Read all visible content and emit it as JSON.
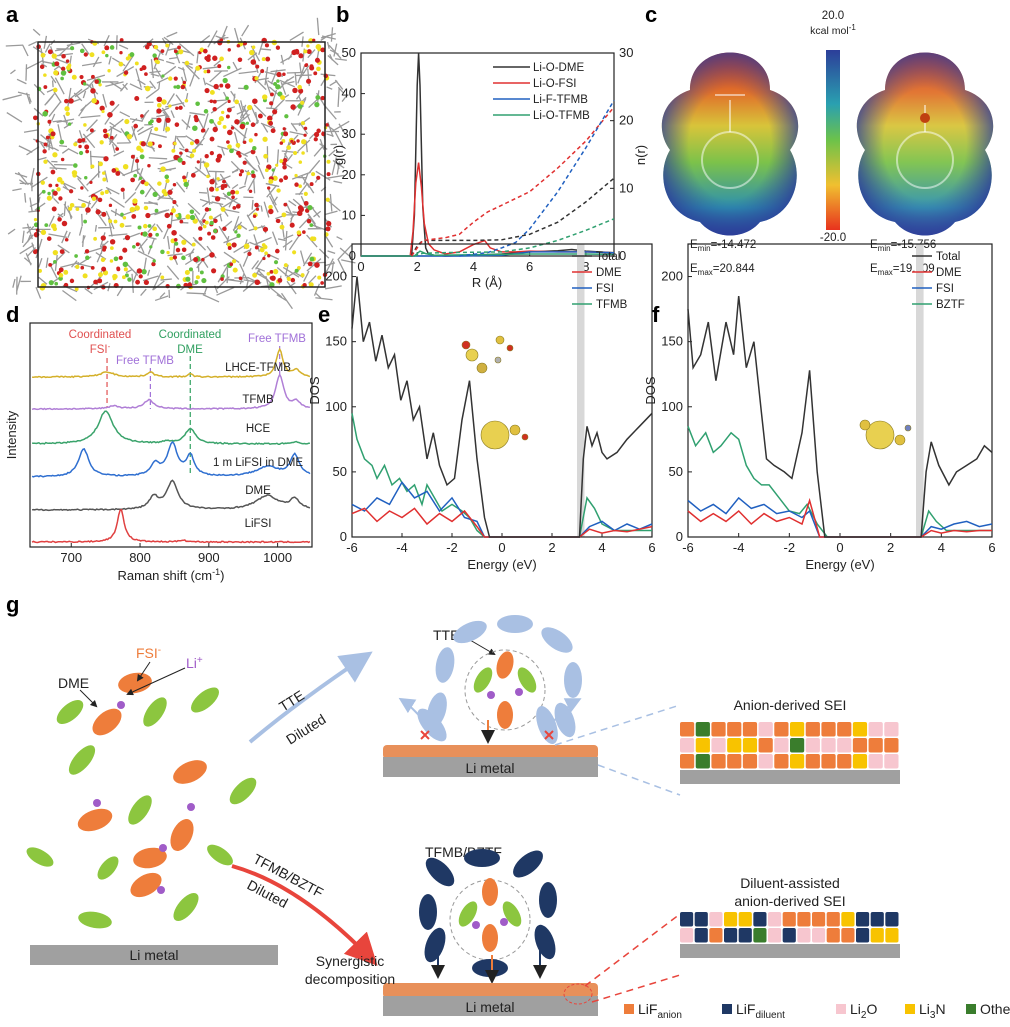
{
  "panel_labels": {
    "a": "a",
    "b": "b",
    "c": "c",
    "d": "d",
    "e": "e",
    "f": "f",
    "g": "g"
  },
  "panel_c": {
    "colorbar_max": "20.0",
    "colorbar_unit": "kcal mol",
    "colorbar_unit_sup": "-1",
    "colorbar_min": "-20.0",
    "left": {
      "emin": {
        "e": "E",
        "sub": "min",
        "val": "=-14.472"
      },
      "emax": {
        "e": "E",
        "sub": "max",
        "val": "=20.844"
      }
    },
    "right": {
      "emin": {
        "e": "E",
        "sub": "min",
        "val": "=-15.756"
      },
      "emax": {
        "e": "E",
        "sub": "max",
        "val": "=19.909"
      }
    },
    "colors": {
      "neg": "#e8321e",
      "mid": "#6cc24a",
      "pos": "#2c3e99"
    }
  },
  "chart_data": [
    {
      "id": "b",
      "type": "line",
      "xlabel": "R (Å)",
      "ylabel": "g(r)",
      "y2label": "n(r)",
      "xlim": [
        0,
        9
      ],
      "ylim": [
        0,
        50
      ],
      "y2lim": [
        0,
        30
      ],
      "xticks": [
        "0",
        "2",
        "4",
        "6",
        "8"
      ],
      "yticks": [
        "0",
        "10",
        "20",
        "30",
        "40",
        "50"
      ],
      "y2ticks": [
        "0",
        "10",
        "20",
        "30"
      ],
      "legend_position": "top-right",
      "series": [
        {
          "name": "Li-O-DME",
          "color": "#333333",
          "axis": "left",
          "style": "solid",
          "x": [
            0,
            1.8,
            1.9,
            2.0,
            2.05,
            2.1,
            2.2,
            2.3,
            2.4,
            2.6,
            3,
            4,
            5,
            6,
            7,
            7.5,
            8,
            9
          ],
          "y": [
            0,
            0,
            10,
            42,
            50,
            42,
            12,
            2,
            0.5,
            0.2,
            0,
            0.2,
            0.5,
            1,
            1.3,
            1.6,
            1.2,
            0.8
          ]
        },
        {
          "name": "Li-O-FSI",
          "color": "#e03030",
          "axis": "left",
          "style": "solid",
          "x": [
            0,
            1.75,
            1.85,
            1.95,
            2.05,
            2.15,
            2.25,
            2.4,
            2.6,
            3,
            3.5,
            4,
            4.4,
            4.6,
            5,
            5.5,
            6,
            7,
            8,
            9
          ],
          "y": [
            0,
            0,
            6,
            18,
            23,
            17,
            8,
            3,
            1.5,
            0.5,
            1,
            2.8,
            3.8,
            2,
            1,
            1,
            1.2,
            1,
            1,
            0.8
          ]
        },
        {
          "name": "Li-F-TFMB",
          "color": "#2060c0",
          "axis": "left",
          "style": "solid",
          "x": [
            0,
            3.5,
            5,
            5.5,
            6,
            7,
            8,
            9
          ],
          "y": [
            0,
            0,
            0.2,
            0.6,
            1,
            1,
            1,
            0.8
          ]
        },
        {
          "name": "Li-O-TFMB",
          "color": "#30a070",
          "axis": "left",
          "style": "solid",
          "x": [
            0,
            1.9,
            2.1,
            2.3,
            2.6,
            4,
            6,
            8,
            9
          ],
          "y": [
            0,
            0,
            1.2,
            0.6,
            0.2,
            0.3,
            0.5,
            0.5,
            0.4
          ]
        },
        {
          "name": "n(r) Li-O-DME",
          "color": "#333333",
          "axis": "right",
          "style": "dashed",
          "x": [
            1.8,
            2.0,
            2.2,
            3,
            4,
            5,
            6,
            7,
            8,
            9
          ],
          "y": [
            0,
            1.5,
            2.3,
            2.3,
            2.3,
            2.4,
            3.2,
            5,
            8,
            11.5
          ]
        },
        {
          "name": "n(r) Li-O-FSI",
          "color": "#e03030",
          "axis": "right",
          "style": "dashed",
          "x": [
            1.8,
            2.0,
            2.2,
            3,
            3.5,
            4,
            4.5,
            5,
            6,
            7,
            8,
            9
          ],
          "y": [
            0,
            1.2,
            2.3,
            2.7,
            3.2,
            5,
            6.5,
            7.5,
            9.5,
            13,
            17,
            22
          ]
        },
        {
          "name": "n(r) Li-F-TFMB",
          "color": "#2060c0",
          "axis": "right",
          "style": "dashed",
          "x": [
            3.5,
            4.5,
            5,
            5.5,
            6,
            7,
            8,
            9
          ],
          "y": [
            0,
            0.5,
            1.2,
            2,
            4,
            9.5,
            16,
            23
          ]
        },
        {
          "name": "n(r) Li-O-TFMB",
          "color": "#30a070",
          "axis": "right",
          "style": "dashed",
          "x": [
            1.9,
            2.2,
            3,
            5,
            6,
            7,
            8,
            9
          ],
          "y": [
            0,
            0.4,
            0.5,
            0.6,
            1.2,
            2.3,
            3.8,
            5.5
          ]
        }
      ]
    },
    {
      "id": "d",
      "type": "line",
      "xlabel": "Raman shift (cm",
      "xlabel_sup": "-1",
      "xlabel_end": ")",
      "ylabel": "Intensity",
      "xlim": [
        640,
        1050
      ],
      "xticks": [
        "700",
        "800",
        "900",
        "1000"
      ],
      "annotations": [
        {
          "text": "Coordinated",
          "color": "#e05050"
        },
        {
          "text": "FSI",
          "sup": "-",
          "color": "#e05050"
        },
        {
          "text": "Free TFMB",
          "color": "#a070d8"
        },
        {
          "text": "Coordinated",
          "color": "#30a060"
        },
        {
          "text": "DME",
          "color": "#30a060"
        },
        {
          "text": "Free TFMB",
          "color": "#a070d8"
        }
      ],
      "marker_lines": [
        {
          "x": 752,
          "color": "#e05050"
        },
        {
          "x": 815,
          "color": "#a070d8"
        },
        {
          "x": 873,
          "color": "#30a060"
        },
        {
          "x": 1003,
          "color": "#a070d8"
        }
      ],
      "series": [
        {
          "name": "LHCE-TFMB",
          "color": "#d4b02a",
          "offset": 165,
          "peaks": [
            [
              752,
              5,
              12
            ],
            [
              815,
              5,
              6
            ],
            [
              873,
              3,
              4
            ],
            [
              1003,
              27,
              6
            ],
            [
              1027,
              7,
              6
            ]
          ]
        },
        {
          "name": "TFMB",
          "color": "#b07fd6",
          "offset": 133,
          "peaks": [
            [
              762,
              3,
              10
            ],
            [
              813,
              9,
              9
            ],
            [
              1003,
              34,
              7
            ],
            [
              1027,
              7,
              7
            ]
          ]
        },
        {
          "name": "HCE",
          "color": "#3aa36b",
          "offset": 98,
          "peaks": [
            [
              750,
              33,
              13
            ],
            [
              840,
              2,
              8
            ],
            [
              873,
              15,
              9
            ],
            [
              1025,
              2,
              8
            ]
          ]
        },
        {
          "name": "1 m LiFSI in DME",
          "color": "#2f6fd0",
          "offset": 65,
          "peaks": [
            [
              718,
              28,
              9
            ],
            [
              822,
              12,
              8
            ],
            [
              847,
              32,
              9
            ],
            [
              873,
              20,
              7
            ],
            [
              985,
              10,
              20
            ],
            [
              1025,
              21,
              8
            ]
          ]
        },
        {
          "name": "DME",
          "color": "#555555",
          "offset": 32,
          "peaks": [
            [
              820,
              12,
              8
            ],
            [
              847,
              28,
              10
            ],
            [
              985,
              14,
              20
            ],
            [
              1025,
              10,
              8
            ]
          ]
        },
        {
          "name": "LiFSI",
          "color": "#e04040",
          "offset": 0,
          "peaks": [
            [
              772,
              33,
              6
            ],
            [
              862,
              2,
              6
            ]
          ]
        }
      ]
    },
    {
      "id": "e",
      "type": "line",
      "xlabel": "Energy (eV)",
      "ylabel": "DOS",
      "xlim": [
        -6,
        6
      ],
      "ylim": [
        0,
        225
      ],
      "xticks": [
        "-6",
        "-4",
        "-2",
        "0",
        "2",
        "4",
        "6"
      ],
      "yticks": [
        "0",
        "50",
        "100",
        "150",
        "200"
      ],
      "shaded_band": [
        3.0,
        3.3
      ],
      "legend_position": "top-right",
      "series": [
        {
          "name": "Total",
          "color": "#333333",
          "x": [
            -6,
            -5.8,
            -5.55,
            -5.3,
            -5.05,
            -4.8,
            -4.55,
            -4.3,
            -4.05,
            -3.8,
            -3.55,
            -3.3,
            -3.0,
            -2.75,
            -2.5,
            -2.2,
            -1.9,
            -1.6,
            -1.3,
            -1.0,
            -0.7,
            -0.5,
            3.1,
            3.25,
            3.4,
            3.6,
            3.8,
            4.0,
            4.2,
            4.6,
            5.0,
            5.5,
            6
          ],
          "y": [
            160,
            200,
            150,
            165,
            135,
            155,
            130,
            140,
            105,
            120,
            90,
            100,
            60,
            80,
            55,
            40,
            45,
            90,
            120,
            60,
            15,
            0,
            0,
            60,
            85,
            70,
            80,
            65,
            60,
            65,
            75,
            85,
            95
          ]
        },
        {
          "name": "DME",
          "color": "#e03030",
          "x": [
            -6,
            -5.5,
            -5,
            -4.5,
            -4,
            -3.5,
            -3,
            -2.5,
            -2,
            -1.5,
            -1,
            -0.7,
            3.1,
            3.5,
            4,
            4.5,
            5,
            5.5,
            6
          ],
          "y": [
            18,
            22,
            12,
            20,
            15,
            22,
            10,
            18,
            12,
            20,
            8,
            0,
            0,
            6,
            3,
            5,
            4,
            6,
            8
          ]
        },
        {
          "name": "FSI",
          "color": "#2060c0",
          "x": [
            -6,
            -5.5,
            -5,
            -4.5,
            -4,
            -3.5,
            -3,
            -2.5,
            -2,
            -1.5,
            -1,
            -0.7,
            3.1,
            3.5,
            4,
            4.5,
            5,
            5.5,
            6
          ],
          "y": [
            25,
            20,
            30,
            25,
            42,
            30,
            35,
            20,
            30,
            15,
            12,
            0,
            0,
            8,
            12,
            5,
            10,
            6,
            10
          ]
        },
        {
          "name": "TFMB",
          "color": "#30a070",
          "x": [
            -6,
            -5.8,
            -5.5,
            -5.2,
            -5,
            -4.7,
            -4.4,
            -4.1,
            -3.8,
            -3.5,
            -3.2,
            -3.0,
            -2.7,
            -2.4,
            -2,
            -1.6,
            -1.3,
            -1,
            -0.7,
            3.1,
            3.4,
            3.7,
            4,
            4.5,
            5,
            6
          ],
          "y": [
            95,
            75,
            60,
            55,
            45,
            55,
            40,
            45,
            35,
            40,
            25,
            40,
            30,
            20,
            25,
            20,
            15,
            5,
            0,
            0,
            30,
            22,
            10,
            5,
            5,
            5
          ]
        }
      ]
    },
    {
      "id": "f",
      "type": "line",
      "xlabel": "Energy (eV)",
      "ylabel": "DOS",
      "xlim": [
        -6,
        6
      ],
      "ylim": [
        0,
        225
      ],
      "xticks": [
        "-6",
        "-4",
        "-2",
        "0",
        "2",
        "4",
        "6"
      ],
      "yticks": [
        "0",
        "50",
        "100",
        "150",
        "200"
      ],
      "shaded_band": [
        3.0,
        3.3
      ],
      "legend_position": "top-right",
      "series": [
        {
          "name": "Total",
          "color": "#333333",
          "x": [
            -6,
            -5.8,
            -5.5,
            -5.2,
            -4.9,
            -4.5,
            -4.2,
            -4.0,
            -3.7,
            -3.4,
            -3.1,
            -2.9,
            -2.6,
            -2.2,
            -1.9,
            -1.5,
            -1.2,
            -0.9,
            -0.6,
            3.2,
            3.4,
            3.6,
            3.9,
            4.3,
            4.6,
            5.0,
            5.4,
            5.7,
            6
          ],
          "y": [
            175,
            130,
            140,
            165,
            120,
            165,
            140,
            185,
            130,
            150,
            95,
            60,
            55,
            50,
            45,
            80,
            128,
            50,
            0,
            0,
            50,
            73,
            55,
            40,
            50,
            55,
            60,
            70,
            65
          ]
        },
        {
          "name": "DME",
          "color": "#e03030",
          "x": [
            -6,
            -5.5,
            -5,
            -4.5,
            -4,
            -3.5,
            -3,
            -2.5,
            -2,
            -1.5,
            -1.2,
            -0.8,
            3.2,
            3.6,
            4,
            4.5,
            5,
            5.5,
            6
          ],
          "y": [
            20,
            12,
            18,
            12,
            20,
            10,
            18,
            12,
            15,
            10,
            28,
            0,
            0,
            5,
            3,
            5,
            4,
            5,
            5
          ]
        },
        {
          "name": "FSI",
          "color": "#2060c0",
          "x": [
            -6,
            -5.5,
            -5,
            -4.5,
            -4,
            -3.5,
            -3,
            -2.5,
            -2,
            -1.5,
            -1.2,
            -0.8,
            3.2,
            3.6,
            4,
            4.5,
            5,
            5.5,
            6
          ],
          "y": [
            28,
            20,
            25,
            18,
            30,
            22,
            25,
            18,
            20,
            15,
            20,
            0,
            0,
            8,
            6,
            10,
            12,
            8,
            10
          ]
        },
        {
          "name": "BZTF",
          "color": "#30a070",
          "x": [
            -6,
            -5.7,
            -5.3,
            -5.0,
            -4.7,
            -4.3,
            -4.0,
            -3.7,
            -3.4,
            -3.1,
            -2.8,
            -2.4,
            -2,
            -1.6,
            -1.3,
            -0.9,
            -0.5,
            3.2,
            3.5,
            3.8,
            4.2,
            5,
            6
          ],
          "y": [
            85,
            70,
            80,
            65,
            70,
            80,
            75,
            55,
            45,
            40,
            40,
            30,
            20,
            18,
            25,
            10,
            0,
            0,
            20,
            12,
            5,
            5,
            5
          ]
        }
      ]
    }
  ],
  "panel_g": {
    "left": {
      "dme": "DME",
      "fsi": "FSI",
      "fsi_sup": "-",
      "li": "Li",
      "li_sup": "+",
      "li_metal": "Li metal"
    },
    "top_arrow": {
      "label": "TTE",
      "sub": "Diluted"
    },
    "bottom_arrow": {
      "label": "TFMB/BZTF",
      "sub": "Diluted"
    },
    "top_mid": {
      "label": "TTE",
      "li_metal": "Li metal"
    },
    "bottom_mid": {
      "label": "TFMB/BZTF",
      "li_metal": "Li metal",
      "note1": "Synergistic",
      "note2": "decomposition"
    },
    "top_right": {
      "title": "Anion-derived SEI"
    },
    "bottom_right": {
      "title1": "Diluent-assisted",
      "title2": "anion-derived SEI"
    },
    "legend": [
      {
        "base": "LiF",
        "sub": "anion",
        "rest": "",
        "color": "#ee7d3b"
      },
      {
        "base": "LiF",
        "sub": "diluent",
        "rest": "",
        "color": "#1f3864"
      },
      {
        "base": "Li",
        "sub": "2",
        "rest": "O",
        "color": "#f7c6cf"
      },
      {
        "base": "Li",
        "sub": "3",
        "rest": "N",
        "color": "#f8c300"
      },
      {
        "base": "Other",
        "sub": "",
        "rest": "",
        "color": "#3a7d2c"
      }
    ],
    "colors": {
      "fsi": "#ee7d3b",
      "dme": "#8cc63f",
      "li": "#a05cc8",
      "tte": "#a9c0e3",
      "tfmb": "#1f3864",
      "metal": "#a0a0a0",
      "film": "#e8905a"
    }
  }
}
